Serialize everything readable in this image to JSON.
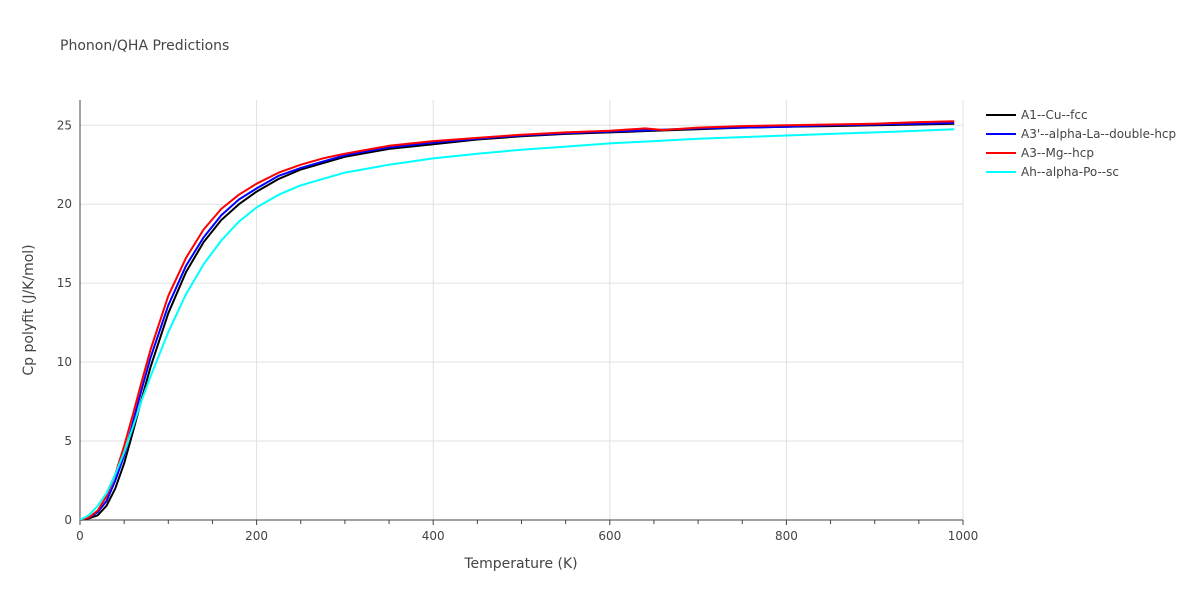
{
  "chart_data": {
    "type": "line",
    "title": "Phonon/QHA Predictions",
    "xlabel": "Temperature (K)",
    "ylabel": "Cp polyfit (J/K/mol)",
    "xlim": [
      0,
      1000
    ],
    "ylim": [
      0,
      26.6
    ],
    "xticks": [
      0,
      200,
      400,
      600,
      800,
      1000
    ],
    "yticks": [
      0,
      5,
      10,
      15,
      20,
      25
    ],
    "grid": true,
    "legend_position": "top-right",
    "series": [
      {
        "name": "A1--Cu--fcc",
        "color": "#000000",
        "x": [
          0,
          10,
          20,
          30,
          40,
          50,
          60,
          70,
          80,
          100,
          120,
          140,
          160,
          180,
          200,
          225,
          250,
          275,
          300,
          350,
          400,
          450,
          500,
          550,
          600,
          650,
          700,
          750,
          800,
          850,
          900,
          950,
          990
        ],
        "y": [
          0,
          0.1,
          0.3,
          0.9,
          2.0,
          3.6,
          5.6,
          7.7,
          9.7,
          13.1,
          15.7,
          17.6,
          19.0,
          20.0,
          20.8,
          21.6,
          22.2,
          22.6,
          23.0,
          23.5,
          23.8,
          24.1,
          24.3,
          24.45,
          24.55,
          24.65,
          24.75,
          24.85,
          24.9,
          24.95,
          25.0,
          25.05,
          25.1
        ]
      },
      {
        "name": "A3'--alpha-La--double-hcp",
        "color": "#0000ff",
        "x": [
          0,
          10,
          20,
          30,
          40,
          50,
          60,
          70,
          80,
          100,
          120,
          140,
          160,
          180,
          200,
          225,
          250,
          275,
          300,
          350,
          400,
          450,
          500,
          550,
          600,
          650,
          700,
          750,
          800,
          850,
          900,
          950,
          990
        ],
        "y": [
          0,
          0.15,
          0.5,
          1.2,
          2.5,
          4.1,
          6.2,
          8.3,
          10.3,
          13.6,
          16.1,
          17.9,
          19.3,
          20.3,
          21.0,
          21.8,
          22.3,
          22.7,
          23.1,
          23.6,
          23.9,
          24.15,
          24.35,
          24.5,
          24.6,
          24.7,
          24.8,
          24.85,
          24.9,
          25.0,
          25.05,
          25.1,
          25.15
        ]
      },
      {
        "name": "A3--Mg--hcp",
        "color": "#ff0000",
        "x": [
          0,
          10,
          20,
          30,
          40,
          50,
          60,
          70,
          80,
          100,
          120,
          140,
          160,
          180,
          200,
          225,
          250,
          275,
          300,
          350,
          400,
          450,
          500,
          550,
          600,
          640,
          660,
          700,
          750,
          800,
          850,
          900,
          950,
          990
        ],
        "y": [
          0,
          0.15,
          0.6,
          1.5,
          2.9,
          4.7,
          6.7,
          8.8,
          10.8,
          14.2,
          16.6,
          18.4,
          19.7,
          20.6,
          21.3,
          22.0,
          22.5,
          22.9,
          23.2,
          23.7,
          24.0,
          24.2,
          24.4,
          24.55,
          24.65,
          24.8,
          24.7,
          24.85,
          24.95,
          25.0,
          25.05,
          25.1,
          25.2,
          25.25
        ]
      },
      {
        "name": "Ah--alpha-Po--sc",
        "color": "#00ffff",
        "x": [
          0,
          10,
          20,
          30,
          40,
          50,
          60,
          70,
          80,
          100,
          120,
          140,
          160,
          180,
          200,
          225,
          250,
          275,
          300,
          350,
          400,
          450,
          500,
          550,
          600,
          650,
          700,
          750,
          800,
          850,
          900,
          950,
          990
        ],
        "y": [
          0,
          0.3,
          0.9,
          1.7,
          2.9,
          4.3,
          5.9,
          7.6,
          9.1,
          11.9,
          14.3,
          16.2,
          17.7,
          18.9,
          19.8,
          20.6,
          21.2,
          21.6,
          22.0,
          22.5,
          22.9,
          23.2,
          23.45,
          23.65,
          23.85,
          24.0,
          24.15,
          24.25,
          24.35,
          24.45,
          24.55,
          24.65,
          24.75
        ]
      }
    ]
  }
}
